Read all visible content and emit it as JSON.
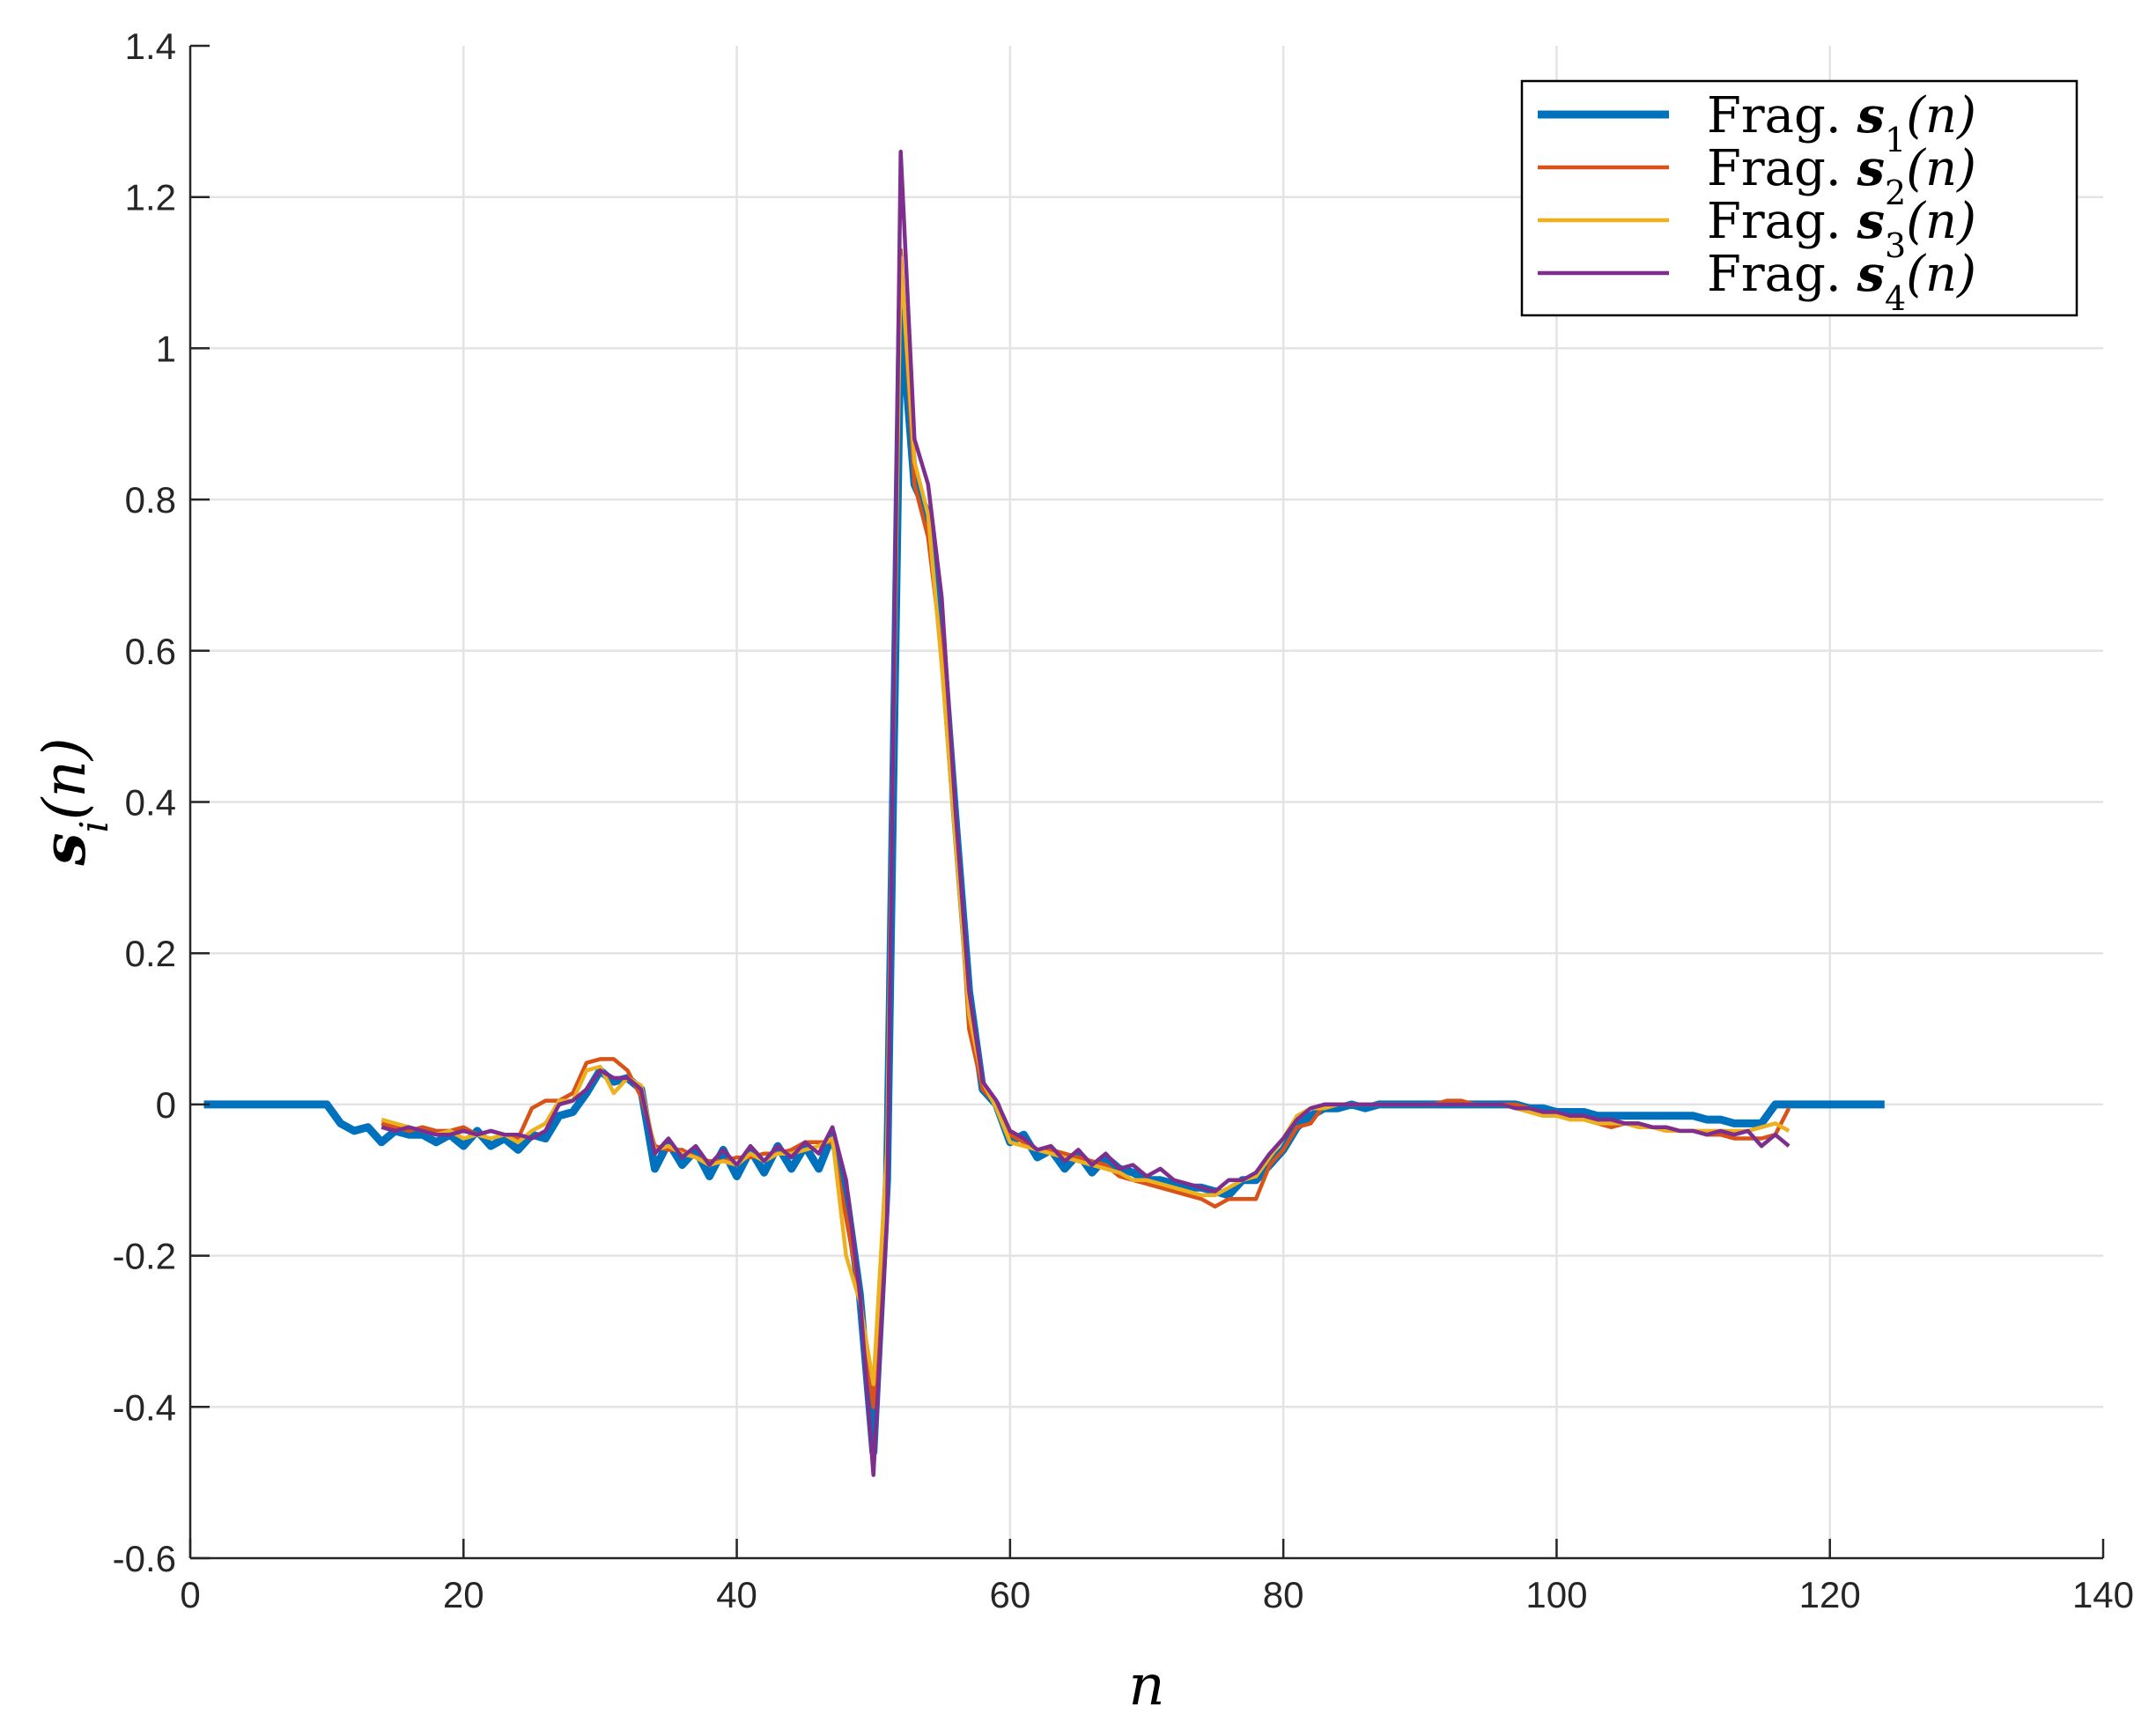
{
  "chart_data": {
    "type": "line",
    "xlabel": "n",
    "ylabel": "s_i(n)",
    "xlim": [
      0,
      140
    ],
    "ylim": [
      -0.6,
      1.4
    ],
    "xticks": [
      0,
      20,
      40,
      60,
      80,
      100,
      120,
      140
    ],
    "yticks": [
      -0.6,
      -0.4,
      -0.2,
      0,
      0.2,
      0.4,
      0.6,
      0.8,
      1,
      1.2,
      1.4
    ],
    "xtick_labels": [
      "0",
      "20",
      "40",
      "60",
      "80",
      "100",
      "120",
      "140"
    ],
    "ytick_labels": [
      "-0.6",
      "-0.4",
      "-0.2",
      "0",
      "0.2",
      "0.4",
      "0.6",
      "0.8",
      "1",
      "1.2",
      "1.4"
    ],
    "grid": true,
    "legend_position": "top-right",
    "series": [
      {
        "name": "Frag. s1(n)",
        "legend_prefix": "Frag.",
        "legend_symbol": "s",
        "legend_sub": "1",
        "legend_arg": "(n)",
        "color": "#0072BD",
        "x": [
          1,
          2,
          3,
          4,
          5,
          6,
          7,
          8,
          9,
          10,
          11,
          12,
          13,
          14,
          15,
          16,
          17,
          18,
          19,
          20,
          21,
          22,
          23,
          24,
          25,
          26,
          27,
          28,
          29,
          30,
          31,
          32,
          33,
          34,
          35,
          36,
          37,
          38,
          39,
          40,
          41,
          42,
          43,
          44,
          45,
          46,
          47,
          48,
          49,
          50,
          51,
          52,
          53,
          54,
          55,
          56,
          57,
          58,
          59,
          60,
          61,
          62,
          63,
          64,
          65,
          66,
          67,
          68,
          69,
          70,
          71,
          72,
          73,
          74,
          75,
          76,
          77,
          78,
          79,
          80,
          81,
          82,
          83,
          84,
          85,
          86,
          87,
          88,
          89,
          90,
          91,
          92,
          93,
          94,
          95,
          96,
          97,
          98,
          99,
          100,
          101,
          102,
          103,
          104,
          105,
          106,
          107,
          108,
          109,
          110,
          111,
          112,
          113,
          114,
          115,
          116,
          117,
          118,
          119,
          120,
          121,
          122,
          123,
          124
        ],
        "y": [
          0,
          0,
          0,
          0,
          0,
          0,
          0,
          0,
          0,
          0,
          -0.025,
          -0.035,
          -0.03,
          -0.05,
          -0.035,
          -0.04,
          -0.04,
          -0.05,
          -0.04,
          -0.055,
          -0.035,
          -0.055,
          -0.045,
          -0.06,
          -0.04,
          -0.045,
          -0.015,
          -0.01,
          0.015,
          0.045,
          0.03,
          0.035,
          0.02,
          -0.085,
          -0.05,
          -0.08,
          -0.06,
          -0.095,
          -0.06,
          -0.095,
          -0.06,
          -0.09,
          -0.055,
          -0.085,
          -0.055,
          -0.085,
          -0.04,
          -0.12,
          -0.25,
          -0.46,
          -0.1,
          1.05,
          0.82,
          0.78,
          0.62,
          0.38,
          0.15,
          0.02,
          0,
          -0.05,
          -0.04,
          -0.07,
          -0.06,
          -0.085,
          -0.065,
          -0.09,
          -0.07,
          -0.085,
          -0.09,
          -0.1,
          -0.1,
          -0.105,
          -0.11,
          -0.11,
          -0.115,
          -0.12,
          -0.1,
          -0.1,
          -0.08,
          -0.06,
          -0.03,
          -0.015,
          -0.005,
          -0.005,
          0,
          -0.005,
          0,
          0,
          0,
          0,
          0,
          0,
          0,
          0,
          0,
          0,
          0,
          -0.005,
          -0.005,
          -0.01,
          -0.01,
          -0.01,
          -0.015,
          -0.015,
          -0.015,
          -0.015,
          -0.015,
          -0.015,
          -0.015,
          -0.015,
          -0.02,
          -0.02,
          -0.025,
          -0.025,
          -0.025,
          0,
          0,
          0,
          0,
          0,
          0,
          0,
          0,
          0
        ]
      },
      {
        "name": "Frag. s2(n)",
        "legend_prefix": "Frag.",
        "legend_symbol": "s",
        "legend_sub": "2",
        "legend_arg": "(n)",
        "color": "#D95319",
        "x": [
          14,
          15,
          16,
          17,
          18,
          19,
          20,
          21,
          22,
          23,
          24,
          25,
          26,
          27,
          28,
          29,
          30,
          31,
          32,
          33,
          34,
          35,
          36,
          37,
          38,
          39,
          40,
          41,
          42,
          43,
          44,
          45,
          46,
          47,
          48,
          49,
          50,
          51,
          52,
          53,
          54,
          55,
          56,
          57,
          58,
          59,
          60,
          61,
          62,
          63,
          64,
          65,
          66,
          67,
          68,
          69,
          70,
          71,
          72,
          73,
          74,
          75,
          76,
          77,
          78,
          79,
          80,
          81,
          82,
          83,
          84,
          85,
          86,
          87,
          88,
          89,
          90,
          91,
          92,
          93,
          94,
          95,
          96,
          97,
          98,
          99,
          100,
          101,
          102,
          103,
          104,
          105,
          106,
          107,
          108,
          109,
          110,
          111,
          112,
          113,
          114,
          115,
          116,
          117
        ],
        "y": [
          -0.025,
          -0.03,
          -0.035,
          -0.03,
          -0.035,
          -0.035,
          -0.03,
          -0.04,
          -0.035,
          -0.04,
          -0.045,
          -0.005,
          0.005,
          0.005,
          0.015,
          0.055,
          0.06,
          0.06,
          0.045,
          0.01,
          -0.055,
          -0.06,
          -0.06,
          -0.07,
          -0.075,
          -0.075,
          -0.07,
          -0.07,
          -0.065,
          -0.065,
          -0.06,
          -0.05,
          -0.05,
          -0.05,
          -0.15,
          -0.25,
          -0.4,
          -0.06,
          1.13,
          0.82,
          0.75,
          0.6,
          0.38,
          0.1,
          0.02,
          0,
          -0.04,
          -0.05,
          -0.06,
          -0.06,
          -0.065,
          -0.07,
          -0.075,
          -0.08,
          -0.095,
          -0.1,
          -0.105,
          -0.11,
          -0.115,
          -0.12,
          -0.125,
          -0.135,
          -0.125,
          -0.125,
          -0.125,
          -0.08,
          -0.06,
          -0.03,
          -0.025,
          0,
          0,
          0,
          0,
          0,
          0,
          0,
          0,
          0,
          0.005,
          0.005,
          0,
          0,
          0,
          0,
          -0.005,
          -0.01,
          -0.015,
          -0.015,
          -0.02,
          -0.025,
          -0.03,
          -0.025,
          -0.025,
          -0.03,
          -0.03,
          -0.035,
          -0.035,
          -0.04,
          -0.04,
          -0.045,
          -0.045,
          -0.045,
          -0.04,
          -0.005
        ]
      },
      {
        "name": "Frag. s3(n)",
        "legend_prefix": "Frag.",
        "legend_symbol": "s",
        "legend_sub": "3",
        "legend_arg": "(n)",
        "color": "#EDB120",
        "x": [
          14,
          15,
          16,
          17,
          18,
          19,
          20,
          21,
          22,
          23,
          24,
          25,
          26,
          27,
          28,
          29,
          30,
          31,
          32,
          33,
          34,
          35,
          36,
          37,
          38,
          39,
          40,
          41,
          42,
          43,
          44,
          45,
          46,
          47,
          48,
          49,
          50,
          51,
          52,
          53,
          54,
          55,
          56,
          57,
          58,
          59,
          60,
          61,
          62,
          63,
          64,
          65,
          66,
          67,
          68,
          69,
          70,
          71,
          72,
          73,
          74,
          75,
          76,
          77,
          78,
          79,
          80,
          81,
          82,
          83,
          84,
          85,
          86,
          87,
          88,
          89,
          90,
          91,
          92,
          93,
          94,
          95,
          96,
          97,
          98,
          99,
          100,
          101,
          102,
          103,
          104,
          105,
          106,
          107,
          108,
          109,
          110,
          111,
          112,
          113,
          114,
          115,
          116,
          117
        ],
        "y": [
          -0.02,
          -0.025,
          -0.03,
          -0.035,
          -0.04,
          -0.035,
          -0.045,
          -0.04,
          -0.045,
          -0.04,
          -0.05,
          -0.035,
          -0.025,
          0.005,
          0.005,
          0.045,
          0.05,
          0.015,
          0.035,
          0.025,
          -0.06,
          -0.055,
          -0.065,
          -0.07,
          -0.08,
          -0.075,
          -0.08,
          -0.065,
          -0.075,
          -0.065,
          -0.065,
          -0.06,
          -0.055,
          -0.045,
          -0.2,
          -0.26,
          -0.37,
          -0.06,
          1.12,
          0.85,
          0.78,
          0.58,
          0.35,
          0.12,
          0.03,
          -0.005,
          -0.05,
          -0.055,
          -0.06,
          -0.065,
          -0.07,
          -0.075,
          -0.08,
          -0.085,
          -0.09,
          -0.1,
          -0.1,
          -0.105,
          -0.11,
          -0.115,
          -0.12,
          -0.12,
          -0.11,
          -0.1,
          -0.095,
          -0.07,
          -0.045,
          -0.015,
          -0.005,
          -0.005,
          0,
          0,
          0,
          0,
          0,
          0,
          0,
          0,
          0,
          0,
          0,
          0,
          0,
          -0.005,
          -0.01,
          -0.015,
          -0.015,
          -0.02,
          -0.02,
          -0.025,
          -0.025,
          -0.025,
          -0.03,
          -0.03,
          -0.035,
          -0.035,
          -0.035,
          -0.035,
          -0.035,
          -0.035,
          -0.035,
          -0.03,
          -0.025,
          -0.035
        ]
      },
      {
        "name": "Frag. s4(n)",
        "legend_prefix": "Frag.",
        "legend_symbol": "s",
        "legend_sub": "4",
        "legend_arg": "(n)",
        "color": "#7E2F8E",
        "x": [
          14,
          15,
          16,
          17,
          18,
          19,
          20,
          21,
          22,
          23,
          24,
          25,
          26,
          27,
          28,
          29,
          30,
          31,
          32,
          33,
          34,
          35,
          36,
          37,
          38,
          39,
          40,
          41,
          42,
          43,
          44,
          45,
          46,
          47,
          48,
          49,
          50,
          51,
          52,
          53,
          54,
          55,
          56,
          57,
          58,
          59,
          60,
          61,
          62,
          63,
          64,
          65,
          66,
          67,
          68,
          69,
          70,
          71,
          72,
          73,
          74,
          75,
          76,
          77,
          78,
          79,
          80,
          81,
          82,
          83,
          84,
          85,
          86,
          87,
          88,
          89,
          90,
          91,
          92,
          93,
          94,
          95,
          96,
          97,
          98,
          99,
          100,
          101,
          102,
          103,
          104,
          105,
          106,
          107,
          108,
          109,
          110,
          111,
          112,
          113,
          114,
          115,
          116,
          117
        ],
        "y": [
          -0.03,
          -0.035,
          -0.03,
          -0.035,
          -0.04,
          -0.04,
          -0.035,
          -0.04,
          -0.035,
          -0.04,
          -0.04,
          -0.045,
          -0.035,
          0,
          0.005,
          0.02,
          0.045,
          0.035,
          0.035,
          0.02,
          -0.065,
          -0.045,
          -0.07,
          -0.055,
          -0.08,
          -0.06,
          -0.08,
          -0.055,
          -0.075,
          -0.055,
          -0.07,
          -0.05,
          -0.065,
          -0.03,
          -0.1,
          -0.25,
          -0.49,
          -0.15,
          1.26,
          0.88,
          0.82,
          0.67,
          0.39,
          0.15,
          0.03,
          0.005,
          -0.035,
          -0.045,
          -0.06,
          -0.055,
          -0.075,
          -0.06,
          -0.08,
          -0.065,
          -0.085,
          -0.08,
          -0.095,
          -0.085,
          -0.1,
          -0.105,
          -0.11,
          -0.115,
          -0.1,
          -0.1,
          -0.09,
          -0.065,
          -0.045,
          -0.02,
          -0.005,
          0,
          0,
          0,
          0,
          0,
          0,
          0,
          0,
          0,
          0,
          0,
          0,
          0,
          0,
          -0.005,
          -0.005,
          -0.01,
          -0.01,
          -0.015,
          -0.015,
          -0.02,
          -0.02,
          -0.025,
          -0.025,
          -0.03,
          -0.03,
          -0.035,
          -0.035,
          -0.04,
          -0.035,
          -0.04,
          -0.035,
          -0.055,
          -0.04,
          -0.055
        ]
      }
    ]
  }
}
